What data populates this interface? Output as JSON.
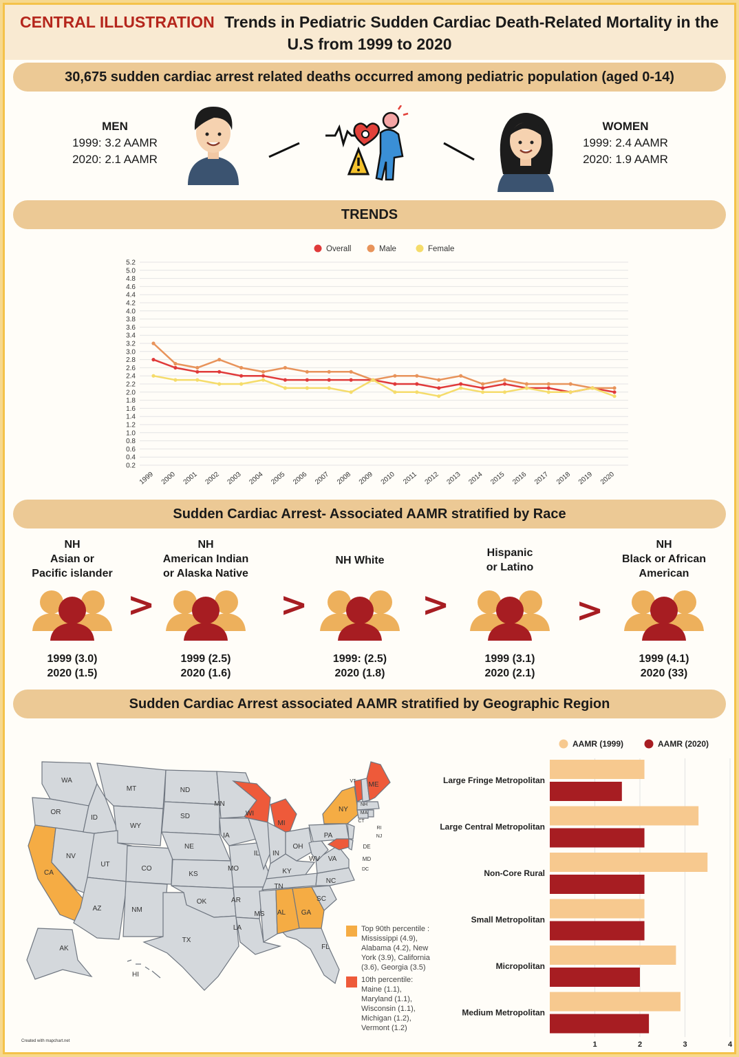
{
  "header": {
    "central_label": "CENTRAL ILLUSTRATION",
    "title_line1": "Trends in Pediatric Sudden Cardiac Death-Related Mortality in the",
    "title_line2": "U.S from 1999 to 2020"
  },
  "summary": {
    "banner": "30,675 sudden cardiac arrest related deaths occurred among pediatric population (aged 0-14)",
    "men": {
      "label": "MEN",
      "line1": "1999: 3.2 AAMR",
      "line2": "2020: 2.1 AAMR"
    },
    "women": {
      "label": "WOMEN",
      "line1": "1999: 2.4 AAMR",
      "line2": "2020: 1.9 AAMR"
    }
  },
  "trends": {
    "banner": "TRENDS"
  },
  "race": {
    "banner": "Sudden Cardiac Arrest- Associated AAMR stratified by Race",
    "groups": [
      {
        "l1": "NH",
        "l2": "Asian or",
        "l3": "Pacific islander",
        "v1": "1999 (3.0)",
        "v2": "2020 (1.5)"
      },
      {
        "l1": "NH",
        "l2": "American Indian",
        "l3": "or Alaska Native",
        "v1": "1999 (2.5)",
        "v2": "2020 (1.6)"
      },
      {
        "l1": "",
        "l2": "NH White",
        "l3": "",
        "v1": "1999: (2.5)",
        "v2": "2020 (1.8)"
      },
      {
        "l1": "Hispanic",
        "l2": "or Latino",
        "l3": "",
        "v1": "1999 (3.1)",
        "v2": "2020 (2.1)"
      },
      {
        "l1": "NH",
        "l2": "Black or African",
        "l3": "American",
        "v1": "1999 (4.1)",
        "v2": "2020 (33)"
      }
    ],
    "separator": ">"
  },
  "geo": {
    "banner": "Sudden Cardiac Arrest associated AAMR stratified by Geographic Region",
    "legend_top": "Top 90th percentile : Mississippi (4.9), Alabama (4.2), New York (3.9), California (3.6), Georgia (3.5)",
    "legend_top_lines": [
      "Top 90th percentile :",
      "Mississippi (4.9),",
      "Alabama (4.2), New",
      "York (3.9), California",
      "(3.6), Georgia (3.5)"
    ],
    "legend_bottom_lines": [
      "10th percentile:",
      "Maine (1.1),",
      "Maryland (1.1),",
      "Wisconsin (1.1),",
      "Michigan (1.2),",
      "Vermont (1.2)"
    ],
    "credit": "Created with mapchart.net",
    "state_labels": [
      "WA",
      "OR",
      "CA",
      "NV",
      "ID",
      "MT",
      "WY",
      "UT",
      "AZ",
      "CO",
      "NM",
      "ND",
      "SD",
      "NE",
      "KS",
      "OK",
      "TX",
      "MN",
      "IA",
      "MO",
      "AR",
      "LA",
      "WI",
      "IL",
      "MI",
      "IN",
      "OH",
      "KY",
      "TN",
      "MS",
      "AL",
      "GA",
      "SC",
      "NC",
      "VA",
      "WV",
      "PA",
      "NY",
      "VT",
      "NH",
      "ME",
      "MA",
      "CT",
      "RI",
      "NJ",
      "DE",
      "MD",
      "DC",
      "FL",
      "AK",
      "HI"
    ],
    "colors": {
      "top": "#f5ac44",
      "bottom": "#ee5a3a",
      "base": "#d4d8dc"
    }
  },
  "chart_data": [
    {
      "type": "line",
      "title": "",
      "x": [
        "1999",
        "2000",
        "2001",
        "2002",
        "2003",
        "2004",
        "2005",
        "2006",
        "2007",
        "2008",
        "2009",
        "2010",
        "2011",
        "2012",
        "2013",
        "2014",
        "2015",
        "2016",
        "2017",
        "2018",
        "2019",
        "2020"
      ],
      "series": [
        {
          "name": "Overall",
          "color": "#e03a3a",
          "values": [
            2.8,
            2.6,
            2.5,
            2.5,
            2.4,
            2.4,
            2.3,
            2.3,
            2.3,
            2.3,
            2.3,
            2.2,
            2.2,
            2.1,
            2.2,
            2.1,
            2.2,
            2.1,
            2.1,
            2.0,
            2.1,
            2.0
          ]
        },
        {
          "name": "Male",
          "color": "#e8935a",
          "values": [
            3.2,
            2.7,
            2.6,
            2.8,
            2.6,
            2.5,
            2.6,
            2.5,
            2.5,
            2.5,
            2.3,
            2.4,
            2.4,
            2.3,
            2.4,
            2.2,
            2.3,
            2.2,
            2.2,
            2.2,
            2.1,
            2.1
          ]
        },
        {
          "name": "Female",
          "color": "#f5dc6a",
          "values": [
            2.4,
            2.3,
            2.3,
            2.2,
            2.2,
            2.3,
            2.1,
            2.1,
            2.1,
            2.0,
            2.3,
            2.0,
            2.0,
            1.9,
            2.1,
            2.0,
            2.0,
            2.1,
            2.0,
            2.0,
            2.1,
            1.9
          ]
        }
      ],
      "y_ticks": [
        "0.2",
        "0.4",
        "0.6",
        "0.8",
        "1.0",
        "1.2",
        "1.4",
        "1.6",
        "1.8",
        "2.0",
        "2.2",
        "2.4",
        "2.6",
        "2.8",
        "3.0",
        "3.2",
        "3.4",
        "3.6",
        "3.8",
        "4.0",
        "4.2",
        "4.4",
        "4.6",
        "4.8",
        "5.0",
        "5.2"
      ],
      "ylim": [
        0.2,
        5.2
      ],
      "legend": "top-center",
      "grid": true
    },
    {
      "type": "bar",
      "orientation": "horizontal",
      "categories": [
        "Large Fringe Metropolitan",
        "Large Central Metropolitan",
        "Non-Core Rural",
        "Small Metropolitan",
        "Micropolitan",
        "Medium Metropolitan"
      ],
      "series": [
        {
          "name": "AAMR (1999)",
          "color": "#f7c98f",
          "values": [
            2.1,
            3.3,
            3.5,
            2.1,
            2.8,
            2.9
          ]
        },
        {
          "name": "AAMR (2020)",
          "color": "#a71d22",
          "values": [
            1.6,
            2.1,
            2.1,
            2.1,
            2.0,
            2.2
          ]
        }
      ],
      "x_ticks": [
        "1",
        "2",
        "3",
        "4"
      ],
      "xlim": [
        0,
        4
      ],
      "legend": "top",
      "grid": true
    }
  ]
}
